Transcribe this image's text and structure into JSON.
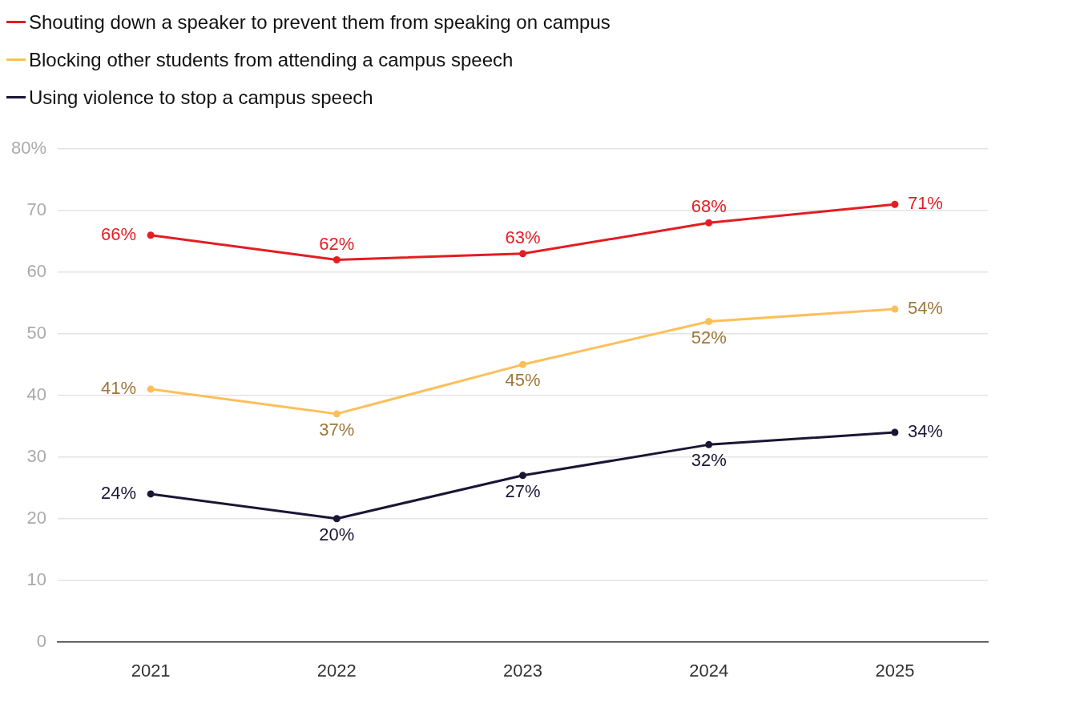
{
  "chart_data": {
    "type": "line",
    "categories": [
      "2021",
      "2022",
      "2023",
      "2024",
      "2025"
    ],
    "series": [
      {
        "name": "Shouting down a speaker to prevent them from speaking on campus",
        "color": "#e31d23",
        "values": [
          66,
          62,
          63,
          68,
          71
        ],
        "value_labels": [
          "66%",
          "62%",
          "63%",
          "68%",
          "71%"
        ]
      },
      {
        "name": "Blocking other students from attending a campus speech",
        "color": "#fdbf5a",
        "values": [
          41,
          37,
          45,
          52,
          54
        ],
        "value_labels": [
          "41%",
          "37%",
          "45%",
          "52%",
          "54%"
        ]
      },
      {
        "name": "Using violence to stop a campus speech",
        "color": "#1b1535",
        "values": [
          24,
          20,
          27,
          32,
          34
        ],
        "value_labels": [
          "24%",
          "20%",
          "27%",
          "32%",
          "34%"
        ]
      }
    ],
    "ylim": [
      0,
      80
    ],
    "yticks": [
      0,
      10,
      20,
      30,
      40,
      50,
      60,
      70,
      {
        "value": 80,
        "label": "80%"
      }
    ],
    "grid": "y",
    "legend": "top left",
    "marker": "circle",
    "line_style": "solid"
  }
}
